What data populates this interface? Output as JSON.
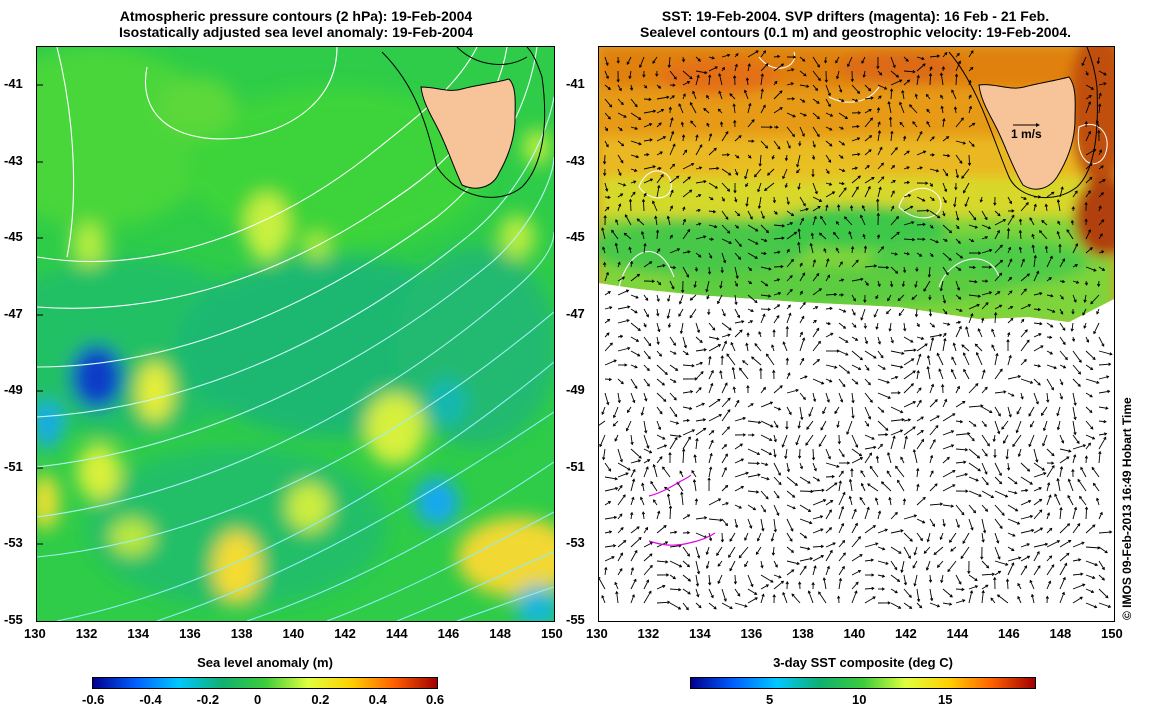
{
  "left_panel": {
    "title_line1": "Atmospheric pressure contours (2 hPa): 19-Feb-2004",
    "title_line2": "Isostatically adjusted sea level anomaly: 19-Feb-2004",
    "colorbar_title": "Sea level anomaly (m)",
    "colorbar_ticks": [
      "-0.6",
      "-0.4",
      "-0.2",
      "0",
      "0.2",
      "0.4",
      "0.6"
    ]
  },
  "right_panel": {
    "title_line1": "SST: 19-Feb-2004. SVP drifters (magenta): 16 Feb - 21 Feb.",
    "title_line2": "Sealevel contours (0.1 m) and geostrophic velocity: 19-Feb-2004.",
    "colorbar_title": "3-day SST composite (deg C)",
    "colorbar_ticks": [
      "5",
      "10",
      "15"
    ],
    "velocity_scale_label": "1 m/s"
  },
  "axes": {
    "lat_labels": [
      "-41",
      "-43",
      "-45",
      "-47",
      "-49",
      "-51",
      "-53",
      "-55"
    ],
    "lon_labels": [
      "130",
      "132",
      "134",
      "136",
      "138",
      "140",
      "142",
      "144",
      "146",
      "148",
      "150"
    ],
    "lat_range": [
      -55,
      -40
    ],
    "lon_range": [
      130,
      150
    ]
  },
  "credit": "© IMOS 09-Feb-2013 16:49 Hobart Time",
  "colors": {
    "land": "#f7c49a",
    "sla_colormap": [
      "#00008f",
      "#0060ff",
      "#00c8ff",
      "#10b070",
      "#3ccc3c",
      "#e0ff40",
      "#ffd000",
      "#ff6000",
      "#a00000"
    ],
    "sst_colormap": [
      "#00008f",
      "#0060ff",
      "#00c8ff",
      "#10b070",
      "#3ccc3c",
      "#e0ff40",
      "#ffd000",
      "#ff6000",
      "#a00000"
    ],
    "drifter": "#e000e0"
  }
}
